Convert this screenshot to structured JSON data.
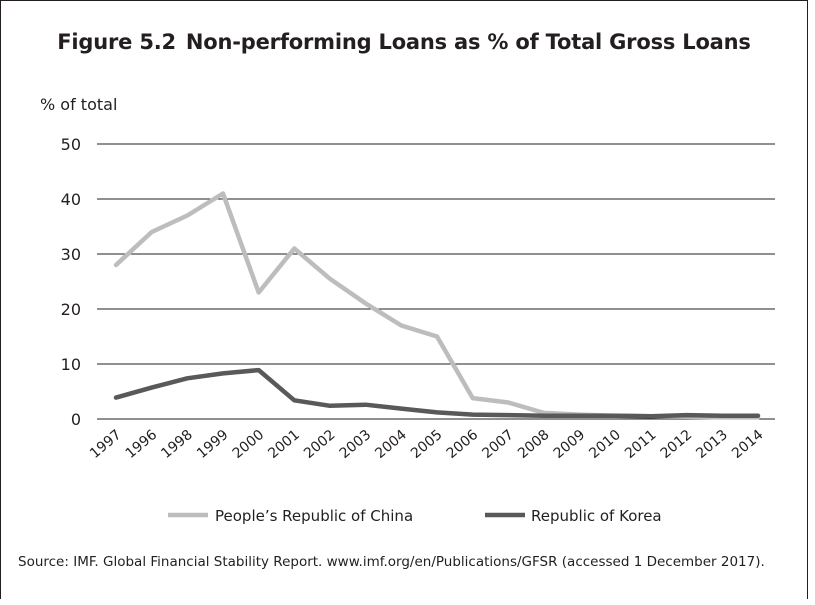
{
  "figure": {
    "number": "Figure 5.2",
    "title": "Non-performing Loans as % of Total Gross Loans"
  },
  "source_note": "Source: IMF. Global Financial Stability Report. www.imf.org/en/Publications/GFSR (accessed 1 December 2017).",
  "chart_data": {
    "type": "line",
    "title": "Non-performing Loans as % of Total Gross Loans",
    "ylabel": "% of total",
    "xlabel": "",
    "ylim": [
      0,
      50
    ],
    "yticks": [
      0,
      10,
      20,
      30,
      40,
      50
    ],
    "grid": "horizontal",
    "legend_position": "bottom",
    "categories": [
      "1997",
      "1996",
      "1998",
      "1999",
      "2000",
      "2001",
      "2002",
      "2003",
      "2004",
      "2005",
      "2006",
      "2007",
      "2008",
      "2009",
      "2010",
      "2011",
      "2012",
      "2013",
      "2014"
    ],
    "series": [
      {
        "name": "People’s Republic of China",
        "color": "#bcbdbf",
        "values": [
          28,
          34,
          37,
          41,
          23,
          31,
          25.5,
          21,
          17,
          15,
          3.8,
          3,
          1.1,
          0.8,
          0.6,
          0.5,
          0.4,
          0.3,
          0.3
        ]
      },
      {
        "name": "Republic of Korea",
        "color": "#58595b",
        "values": [
          3.9,
          5.7,
          7.4,
          8.3,
          8.9,
          3.4,
          2.4,
          2.6,
          1.9,
          1.2,
          0.8,
          0.7,
          0.6,
          0.6,
          0.6,
          0.5,
          0.7,
          0.6,
          0.6
        ]
      }
    ]
  }
}
